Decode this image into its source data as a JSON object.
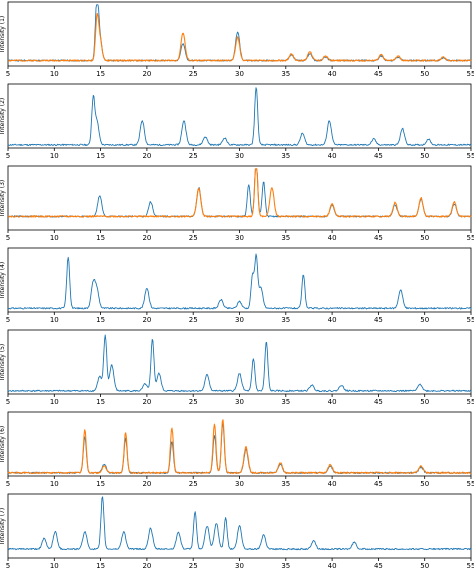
{
  "chart_data": [
    {
      "type": "line",
      "ylabel": "Intensity (1)",
      "xlim": [
        5,
        55
      ],
      "xticks": [
        5,
        10,
        15,
        20,
        25,
        30,
        35,
        40,
        45,
        50,
        55
      ],
      "series": [
        {
          "color": "#1f77b4",
          "baseline": 0.06,
          "peaks": [
            [
              14.6,
              1.0
            ],
            [
              14.9,
              0.42
            ],
            [
              23.9,
              0.3
            ],
            [
              29.8,
              0.5
            ],
            [
              35.6,
              0.1
            ],
            [
              37.6,
              0.12
            ],
            [
              39.3,
              0.06
            ],
            [
              45.3,
              0.08
            ],
            [
              47.1,
              0.06
            ],
            [
              52.0,
              0.05
            ]
          ]
        },
        {
          "color": "#ff7f0e",
          "baseline": 0.06,
          "peaks": [
            [
              14.6,
              0.62
            ],
            [
              14.9,
              0.4
            ],
            [
              23.9,
              0.48
            ],
            [
              29.8,
              0.4
            ],
            [
              35.6,
              0.12
            ],
            [
              37.6,
              0.16
            ],
            [
              39.3,
              0.08
            ],
            [
              45.3,
              0.1
            ],
            [
              47.1,
              0.08
            ],
            [
              52.0,
              0.06
            ]
          ]
        }
      ]
    },
    {
      "type": "line",
      "ylabel": "Intensity (2)",
      "xlim": [
        5,
        55
      ],
      "xticks": [
        5,
        10,
        15,
        20,
        25,
        30,
        35,
        40,
        45,
        50,
        55
      ],
      "series": [
        {
          "color": "#1f77b4",
          "baseline": 0.02,
          "peaks": [
            [
              14.2,
              0.78
            ],
            [
              14.6,
              0.4
            ],
            [
              19.5,
              0.42
            ],
            [
              24.0,
              0.42
            ],
            [
              26.3,
              0.14
            ],
            [
              28.4,
              0.12
            ],
            [
              31.8,
              1.0
            ],
            [
              36.8,
              0.2
            ],
            [
              39.7,
              0.42
            ],
            [
              44.5,
              0.1
            ],
            [
              47.6,
              0.28
            ],
            [
              50.4,
              0.1
            ]
          ]
        }
      ]
    },
    {
      "type": "line",
      "ylabel": "Intensity (3)",
      "xlim": [
        5,
        55
      ],
      "xticks": [
        5,
        10,
        15,
        20,
        25,
        30,
        35,
        40,
        45,
        50,
        55
      ],
      "series": [
        {
          "color": "#1f77b4",
          "baseline": 0.2,
          "peaks": [
            [
              14.9,
              0.36
            ],
            [
              20.4,
              0.25
            ],
            [
              25.6,
              0.5
            ],
            [
              31.0,
              0.55
            ],
            [
              31.8,
              1.0
            ],
            [
              32.6,
              0.6
            ],
            [
              40.0,
              0.2
            ],
            [
              46.8,
              0.2
            ],
            [
              49.6,
              0.3
            ],
            [
              53.2,
              0.22
            ]
          ]
        },
        {
          "color": "#ff7f0e",
          "baseline": 0.2,
          "peaks": [
            [
              25.6,
              0.48
            ],
            [
              31.8,
              0.95
            ],
            [
              33.5,
              0.5
            ],
            [
              40.0,
              0.22
            ],
            [
              46.8,
              0.24
            ],
            [
              49.6,
              0.32
            ],
            [
              53.2,
              0.25
            ]
          ]
        }
      ]
    },
    {
      "type": "line",
      "ylabel": "Intensity (4)",
      "xlim": [
        5,
        55
      ],
      "xticks": [
        5,
        10,
        15,
        20,
        25,
        30,
        35,
        40,
        45,
        50,
        55
      ],
      "series": [
        {
          "color": "#1f77b4",
          "baseline": 0.03,
          "peaks": [
            [
              11.5,
              0.88
            ],
            [
              14.2,
              0.42
            ],
            [
              14.6,
              0.3
            ],
            [
              20.0,
              0.35
            ],
            [
              28.0,
              0.15
            ],
            [
              30.0,
              0.12
            ],
            [
              31.4,
              0.55
            ],
            [
              31.8,
              0.88
            ],
            [
              32.3,
              0.35
            ],
            [
              36.9,
              0.58
            ],
            [
              47.4,
              0.32
            ]
          ]
        }
      ]
    },
    {
      "type": "line",
      "ylabel": "Intensity (5)",
      "xlim": [
        5,
        55
      ],
      "xticks": [
        5,
        10,
        15,
        20,
        25,
        30,
        35,
        40,
        45,
        50,
        55
      ],
      "series": [
        {
          "color": "#1f77b4",
          "baseline": 0.02,
          "peaks": [
            [
              14.9,
              0.25
            ],
            [
              15.5,
              0.95
            ],
            [
              16.2,
              0.45
            ],
            [
              19.8,
              0.12
            ],
            [
              20.6,
              0.9
            ],
            [
              21.3,
              0.3
            ],
            [
              26.5,
              0.28
            ],
            [
              30.0,
              0.3
            ],
            [
              31.5,
              0.55
            ],
            [
              32.9,
              0.85
            ],
            [
              37.8,
              0.1
            ],
            [
              41.0,
              0.1
            ],
            [
              49.5,
              0.12
            ]
          ]
        }
      ]
    },
    {
      "type": "line",
      "ylabel": "Intensity (6)",
      "xlim": [
        5,
        55
      ],
      "xticks": [
        5,
        10,
        15,
        20,
        25,
        30,
        35,
        40,
        45,
        50,
        55
      ],
      "series": [
        {
          "color": "#1f77b4",
          "baseline": 0.02,
          "peaks": [
            [
              13.3,
              0.62
            ],
            [
              15.4,
              0.15
            ],
            [
              17.7,
              0.6
            ],
            [
              22.7,
              0.55
            ],
            [
              27.3,
              0.65
            ],
            [
              28.2,
              0.85
            ],
            [
              30.7,
              0.4
            ],
            [
              34.4,
              0.15
            ],
            [
              39.8,
              0.12
            ],
            [
              49.6,
              0.1
            ]
          ]
        },
        {
          "color": "#ff7f0e",
          "baseline": 0.02,
          "peaks": [
            [
              13.3,
              0.75
            ],
            [
              15.4,
              0.12
            ],
            [
              17.7,
              0.7
            ],
            [
              22.7,
              0.78
            ],
            [
              27.3,
              0.85
            ],
            [
              28.2,
              0.93
            ],
            [
              30.7,
              0.45
            ],
            [
              34.4,
              0.18
            ],
            [
              39.8,
              0.15
            ],
            [
              49.6,
              0.12
            ]
          ]
        }
      ]
    },
    {
      "type": "line",
      "ylabel": "Intensity (7)",
      "xlim": [
        5,
        55
      ],
      "xticks": [
        5,
        10,
        15,
        20,
        25,
        30,
        35,
        40,
        45,
        50,
        55
      ],
      "series": [
        {
          "color": "#1f77b4",
          "baseline": 0.12,
          "peaks": [
            [
              8.9,
              0.18
            ],
            [
              10.1,
              0.3
            ],
            [
              13.3,
              0.3
            ],
            [
              15.2,
              0.92
            ],
            [
              17.5,
              0.3
            ],
            [
              20.4,
              0.36
            ],
            [
              23.4,
              0.3
            ],
            [
              25.2,
              0.65
            ],
            [
              26.5,
              0.4
            ],
            [
              27.5,
              0.45
            ],
            [
              28.5,
              0.55
            ],
            [
              30.0,
              0.4
            ],
            [
              32.6,
              0.25
            ],
            [
              38.0,
              0.15
            ],
            [
              42.4,
              0.12
            ]
          ]
        }
      ]
    }
  ]
}
